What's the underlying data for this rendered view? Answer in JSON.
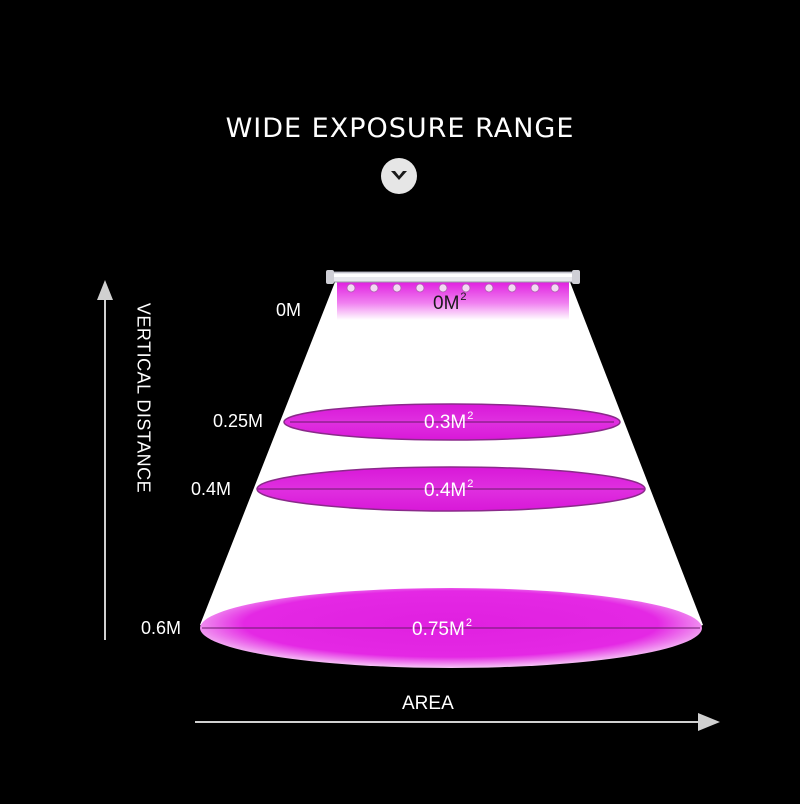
{
  "title": "WIDE EXPOSURE RANGE",
  "axes": {
    "vertical_label": "VERTICAL DISTANCE",
    "horizontal_label": "AREA"
  },
  "levels": [
    {
      "distance": "0M",
      "area": "0M",
      "exp": "2"
    },
    {
      "distance": "0.25M",
      "area": "0.3M",
      "exp": "2"
    },
    {
      "distance": "0.4M",
      "area": "0.4M",
      "exp": "2"
    },
    {
      "distance": "0.6M",
      "area": "0.75M",
      "exp": "2"
    }
  ],
  "colors": {
    "background": "#000000",
    "light": "#e020e0",
    "cone": "#ffffff",
    "text": "#ffffff",
    "axis": "#d0d0d0"
  },
  "icons": {
    "heading": "chevron-down-circle-icon"
  }
}
